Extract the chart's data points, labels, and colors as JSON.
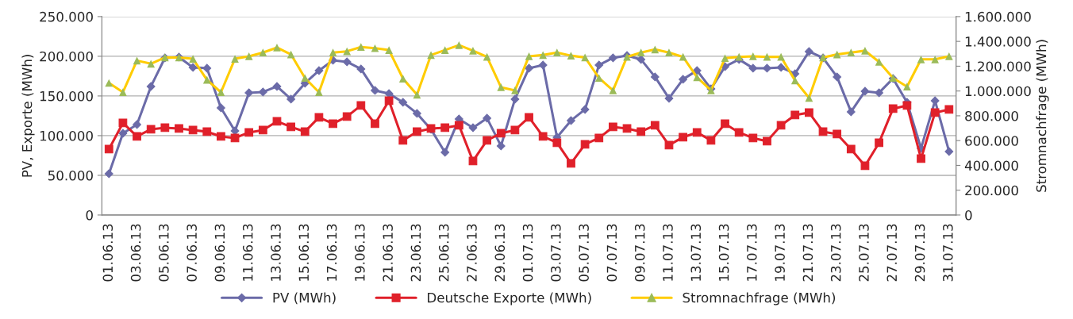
{
  "chart_data": {
    "type": "line",
    "ylabel": "PV, Exporte (MWh)",
    "y2label": "Stromnachfrage (MWh)",
    "categories": [
      "01.06.13",
      null,
      "03.06.13",
      null,
      "05.06.13",
      null,
      "07.06.13",
      null,
      "09.06.13",
      null,
      "11.06.13",
      null,
      "13.06.13",
      null,
      "15.06.13",
      null,
      "17.06.13",
      null,
      "19.06.13",
      null,
      "21.06.13",
      null,
      "23.06.13",
      null,
      "25.06.13",
      null,
      "27.06.13",
      null,
      "29.06.13",
      null,
      "01.07.13",
      null,
      "03.07.13",
      null,
      "05.07.13",
      null,
      "07.07.13",
      null,
      "09.07.13",
      null,
      "11.07.13",
      null,
      "13.07.13",
      null,
      "15.07.13",
      null,
      "17.07.13",
      null,
      "19.07.13",
      null,
      "21.07.13",
      null,
      "23.07.13",
      null,
      "25.07.13",
      null,
      "27.07.13",
      null,
      "29.07.13",
      null,
      "31.07.13"
    ],
    "series": [
      {
        "name": "PV (MWh)",
        "color": "#6b6ba8",
        "marker": "diamond",
        "values": [
          52000,
          103000,
          114000,
          162000,
          198000,
          199000,
          186000,
          185000,
          135000,
          106000,
          154000,
          155000,
          162000,
          146000,
          166000,
          182000,
          195000,
          193000,
          184000,
          157000,
          153000,
          142000,
          128000,
          108000,
          79000,
          121000,
          110000,
          122000,
          87000,
          146000,
          185000,
          189000,
          98000,
          119000,
          133000,
          189000,
          198000,
          201000,
          196000,
          174000,
          147000,
          171000,
          182000,
          159000,
          187000,
          196000,
          185000,
          185000,
          186000,
          178000,
          206000,
          198000,
          174000,
          130000,
          156000,
          154000,
          172000,
          142000,
          84000,
          144000,
          80000
        ]
      },
      {
        "name": "Deutsche Exporte (MWh)",
        "color": "#e0202a",
        "marker": "square",
        "values": [
          83000,
          116000,
          99000,
          108000,
          110000,
          109000,
          107000,
          105000,
          99000,
          97000,
          104000,
          107000,
          118000,
          111000,
          105000,
          123000,
          115000,
          124000,
          138000,
          115000,
          144000,
          94000,
          105000,
          109000,
          110000,
          113000,
          68000,
          94000,
          103000,
          107000,
          123000,
          99000,
          91000,
          65000,
          89000,
          97000,
          111000,
          109000,
          105000,
          113000,
          88000,
          98000,
          104000,
          94000,
          115000,
          104000,
          97000,
          93000,
          113000,
          126000,
          129000,
          105000,
          102000,
          83000,
          62000,
          91000,
          134000,
          138000,
          71000,
          129000,
          133000
        ]
      },
      {
        "name": "Stromnachfrage (MWh)",
        "color": "#ffcc00",
        "colors": [
          "#9bbb59",
          "#9bbb59",
          "#9bbb59",
          "#9bbb59",
          "#9bbb59",
          "#9bbb59",
          "#9bbb59",
          "#9bbb59",
          "#9bbb59",
          "#9bbb59",
          "#9bbb59",
          "#9bbb59",
          "#9bbb59",
          "#9bbb59",
          "#9bbb59",
          "#9bbb59",
          "#9bbb59",
          "#9bbb59",
          "#9bbb59",
          "#9bbb59",
          "#9bbb59",
          "#9bbb59",
          "#9bbb59",
          "#9bbb59",
          "#9bbb59",
          "#9bbb59",
          "#9bbb59",
          "#9bbb59",
          "#9bbb59",
          "#9bbb59",
          "#9bbb59",
          "#9bbb59",
          "#9bbb59",
          "#9bbb59",
          "#9bbb59",
          "#9bbb59",
          "#9bbb59",
          "#9bbb59",
          "#9bbb59",
          "#9bbb59",
          "#9bbb59",
          "#9bbb59",
          "#9bbb59",
          "#9bbb59",
          "#9bbb59",
          "#9bbb59",
          "#9bbb59",
          "#9bbb59",
          "#9bbb59",
          "#9bbb59",
          "#9bbb59",
          "#9bbb59",
          "#9bbb59",
          "#9bbb59",
          "#9bbb59",
          "#9bbb59",
          "#9bbb59",
          "#9bbb59",
          "#9bbb59",
          "#9bbb59",
          "#9bbb59"
        ],
        "marker": "triangle",
        "axis": "y2",
        "values": [
          1065000,
          990000,
          1245000,
          1220000,
          1270000,
          1270000,
          1260000,
          1090000,
          990000,
          1260000,
          1280000,
          1310000,
          1350000,
          1295000,
          1105000,
          990000,
          1310000,
          1320000,
          1355000,
          1345000,
          1330000,
          1100000,
          970000,
          1290000,
          1330000,
          1370000,
          1325000,
          1275000,
          1030000,
          1005000,
          1280000,
          1290000,
          1310000,
          1285000,
          1270000,
          1105000,
          1005000,
          1275000,
          1310000,
          1335000,
          1310000,
          1275000,
          1110000,
          1005000,
          1265000,
          1275000,
          1280000,
          1275000,
          1275000,
          1085000,
          945000,
          1270000,
          1295000,
          1310000,
          1325000,
          1235000,
          1105000,
          1035000,
          1255000,
          1255000,
          1280000
        ]
      }
    ],
    "ylim": [
      0,
      250000
    ],
    "yticks": [
      0,
      {
        "value": 50000,
        "label": "50.000"
      },
      {
        "value": 100000,
        "label": "100.000"
      },
      {
        "value": 150000,
        "label": "150.000"
      },
      {
        "value": 200000,
        "label": "200.000"
      },
      {
        "value": 250000,
        "label": "250.000"
      }
    ],
    "y2lim": [
      0,
      1600000
    ],
    "y2ticks": [
      0,
      {
        "value": 200000,
        "label": "200.000"
      },
      {
        "value": 400000,
        "label": "400.000"
      },
      {
        "value": 600000,
        "label": "600.000"
      },
      {
        "value": 800000,
        "label": "800.000"
      },
      {
        "value": 1000000,
        "label": "1.000.000"
      },
      {
        "value": 1200000,
        "label": "1.200.000"
      },
      {
        "value": 1400000,
        "label": "1.400.000"
      },
      {
        "value": 1600000,
        "label": "1.600.000"
      }
    ],
    "grid": "y",
    "legend": "bottom",
    "line_style": "solid"
  }
}
